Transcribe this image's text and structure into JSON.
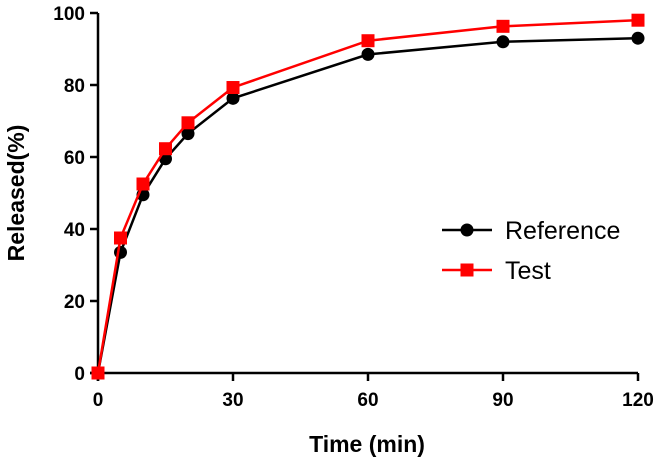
{
  "chart_data": {
    "type": "line",
    "title": "",
    "xlabel": "Time (min)",
    "ylabel": "Released(%)",
    "xlim": [
      0,
      120
    ],
    "ylim": [
      0,
      100
    ],
    "x_ticks": [
      0,
      30,
      60,
      90,
      120
    ],
    "y_ticks": [
      0,
      20,
      40,
      60,
      80,
      100
    ],
    "x_tick_labels": [
      "0",
      "30",
      "60",
      "90",
      "120"
    ],
    "y_tick_labels": [
      "0",
      "20",
      "40",
      "60",
      "80",
      "100"
    ],
    "grid": false,
    "legend_position": "right-middle",
    "series": [
      {
        "name": "Reference",
        "color": "#000000",
        "marker": "circle",
        "x": [
          0,
          5,
          10,
          15,
          20,
          30,
          60,
          90,
          120
        ],
        "y": [
          0,
          33.5,
          49.5,
          59.5,
          66.5,
          76.3,
          88.5,
          92.0,
          93.0
        ]
      },
      {
        "name": "Test",
        "color": "#ff0000",
        "marker": "square",
        "x": [
          0,
          5,
          10,
          15,
          20,
          30,
          60,
          90,
          120
        ],
        "y": [
          0,
          37.5,
          52.5,
          62.3,
          69.5,
          79.3,
          92.3,
          96.3,
          98.0
        ]
      }
    ]
  }
}
